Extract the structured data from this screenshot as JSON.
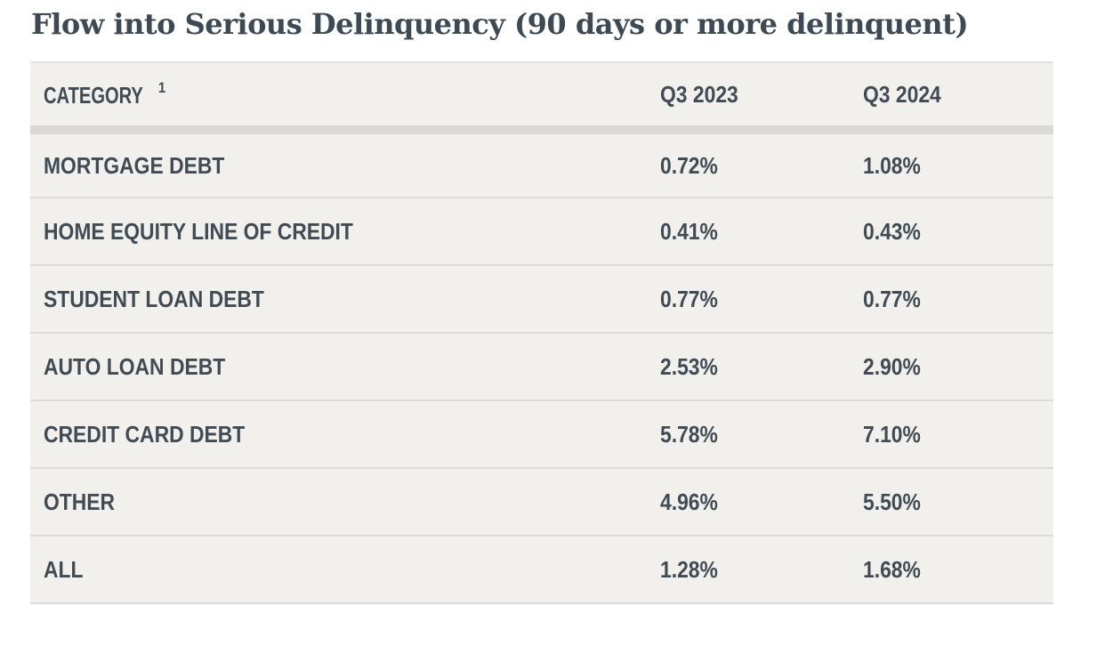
{
  "title": "Flow into Serious Delinquency (90 days or more delinquent)",
  "table": {
    "headers": {
      "category": "CATEGORY",
      "category_footnote": "1",
      "q3_2023": "Q3 2023",
      "q3_2024": "Q3 2024"
    },
    "rows": [
      {
        "category": "MORTGAGE DEBT",
        "q3_2023": "0.72%",
        "q3_2024": "1.08%"
      },
      {
        "category": "HOME EQUITY LINE OF CREDIT",
        "q3_2023": "0.41%",
        "q3_2024": "0.43%"
      },
      {
        "category": "STUDENT LOAN DEBT",
        "q3_2023": "0.77%",
        "q3_2024": "0.77%"
      },
      {
        "category": "AUTO LOAN DEBT",
        "q3_2023": "2.53%",
        "q3_2024": "2.90%"
      },
      {
        "category": "CREDIT CARD DEBT",
        "q3_2023": "5.78%",
        "q3_2024": "7.10%"
      },
      {
        "category": "OTHER",
        "q3_2023": "4.96%",
        "q3_2024": "5.50%"
      },
      {
        "category": "ALL",
        "q3_2023": "1.28%",
        "q3_2024": "1.68%"
      }
    ]
  },
  "colors": {
    "title_text": "#3d4a54",
    "table_text": "#404b53",
    "table_background": "#f1f0ec",
    "header_rule": "#d9d8d4",
    "row_divider": "#dedcd8"
  }
}
